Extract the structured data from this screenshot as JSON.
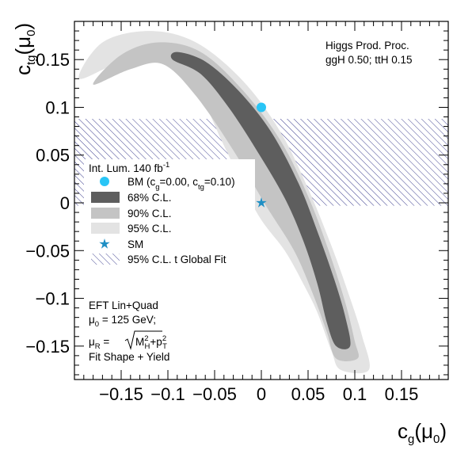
{
  "chart_data": {
    "type": "contour",
    "xlabel": {
      "main": "c",
      "sub": "g",
      "suffix": "(μ",
      "suffix_sub": "0",
      "close": ")"
    },
    "ylabel": {
      "main": "c",
      "sub": "tg",
      "suffix": "(μ",
      "suffix_sub": "0",
      "close": ")"
    },
    "xlim": [
      -0.2,
      0.2
    ],
    "ylim": [
      -0.185,
      0.19
    ],
    "x_ticks": [
      -0.15,
      -0.1,
      -0.05,
      0,
      0.05,
      0.1,
      0.15
    ],
    "x_tick_labels": [
      "−0.15",
      "−0.1",
      "−0.05",
      "0",
      "0.05",
      "0.1",
      "0.15"
    ],
    "y_ticks": [
      -0.15,
      -0.1,
      -0.05,
      0,
      0.05,
      0.1,
      0.15
    ],
    "y_tick_labels": [
      "−0.15",
      "−0.1",
      "−0.05",
      "0",
      "0.05",
      "0.1",
      "0.15"
    ],
    "grid": false,
    "colors": {
      "cl68": "#5e5e5e",
      "cl90": "#c4c4c4",
      "cl95": "#e3e3e3",
      "bm": "#29c5f6",
      "sm": "#1f8fc4",
      "hatch": "#2c2e86"
    },
    "benchmark_point": {
      "x": 0.0,
      "y": 0.1
    },
    "sm_point": {
      "x": 0.0,
      "y": 0.0
    },
    "global_fit_band": {
      "x": [
        -0.2,
        0.2
      ],
      "y": [
        -0.003,
        0.088
      ]
    },
    "regions": {
      "cl95": {
        "upper": [
          [
            -0.195,
            0.13
          ],
          [
            -0.17,
            0.168
          ],
          [
            -0.12,
            0.18
          ],
          [
            -0.07,
            0.168
          ],
          [
            -0.02,
            0.128
          ],
          [
            0.02,
            0.075
          ],
          [
            0.05,
            0.015
          ],
          [
            0.075,
            -0.045
          ],
          [
            0.095,
            -0.1
          ],
          [
            0.108,
            -0.14
          ],
          [
            0.115,
            -0.175
          ]
        ],
        "lower": [
          [
            -0.195,
            0.13
          ],
          [
            -0.15,
            0.148
          ],
          [
            -0.11,
            0.155
          ],
          [
            -0.07,
            0.12
          ],
          [
            -0.04,
            0.06
          ],
          [
            -0.005,
            -0.01
          ],
          [
            0.025,
            -0.05
          ],
          [
            0.045,
            -0.085
          ],
          [
            0.06,
            -0.115
          ],
          [
            0.075,
            -0.155
          ],
          [
            0.085,
            -0.175
          ],
          [
            0.115,
            -0.175
          ]
        ]
      },
      "cl90": {
        "upper": [
          [
            -0.18,
            0.124
          ],
          [
            -0.15,
            0.155
          ],
          [
            -0.11,
            0.168
          ],
          [
            -0.065,
            0.158
          ],
          [
            -0.02,
            0.118
          ],
          [
            0.02,
            0.066
          ],
          [
            0.05,
            0.007
          ],
          [
            0.072,
            -0.05
          ],
          [
            0.09,
            -0.105
          ],
          [
            0.1,
            -0.145
          ],
          [
            0.103,
            -0.163
          ]
        ],
        "lower": [
          [
            -0.18,
            0.124
          ],
          [
            -0.14,
            0.14
          ],
          [
            -0.105,
            0.145
          ],
          [
            -0.07,
            0.112
          ],
          [
            -0.03,
            0.055
          ],
          [
            0.005,
            -0.003
          ],
          [
            0.035,
            -0.05
          ],
          [
            0.055,
            -0.095
          ],
          [
            0.07,
            -0.135
          ],
          [
            0.08,
            -0.163
          ],
          [
            0.103,
            -0.163
          ]
        ]
      },
      "cl68": {
        "upper": [
          [
            -0.09,
            0.158
          ],
          [
            -0.06,
            0.148
          ],
          [
            -0.025,
            0.118
          ],
          [
            0.01,
            0.075
          ],
          [
            0.04,
            0.02
          ],
          [
            0.06,
            -0.03
          ],
          [
            0.078,
            -0.08
          ],
          [
            0.09,
            -0.12
          ],
          [
            0.095,
            -0.15
          ]
        ],
        "lower": [
          [
            -0.09,
            0.158
          ],
          [
            -0.095,
            0.15
          ],
          [
            -0.065,
            0.135
          ],
          [
            -0.035,
            0.1
          ],
          [
            -0.005,
            0.055
          ],
          [
            0.025,
            0.005
          ],
          [
            0.045,
            -0.04
          ],
          [
            0.06,
            -0.085
          ],
          [
            0.07,
            -0.125
          ],
          [
            0.08,
            -0.15
          ],
          [
            0.095,
            -0.15
          ]
        ]
      }
    },
    "legend": {
      "header": {
        "main": "Int. Lum. 140 fb",
        "sup": "-1"
      },
      "entries": [
        {
          "kind": "marker-circle",
          "label": "BM (c",
          "label_parts": [
            "BM (c",
            "g",
            "=0.00, c",
            "tg",
            "=0.10)"
          ]
        },
        {
          "kind": "box-68",
          "label": "68% C.L."
        },
        {
          "kind": "box-90",
          "label": "90% C.L."
        },
        {
          "kind": "box-95",
          "label": "95% C.L."
        },
        {
          "kind": "marker-star",
          "label": "SM"
        },
        {
          "kind": "hatch",
          "label": "95% C.L. t Global Fit"
        }
      ],
      "placement": "middle-left"
    },
    "annotation_top_right": {
      "line1": "Higgs Prod. Proc.",
      "line2": "ggH  0.50; ttH 0.15"
    },
    "annotation_bottom_left": {
      "line1": "EFT Lin+Quad",
      "line2_main": "μ",
      "line2_sub": "0",
      "line2_rest": " = 125 GeV;",
      "line3_main": "μ",
      "line3_sub": "R",
      "line3_eq": " =",
      "line3_m": "M",
      "line3_m_sub": "H",
      "line3_m_sup": "2",
      "line3_plus": "+p",
      "line3_p_sub": "T",
      "line3_p_sup": "2",
      "line4": "Fit Shape + Yield"
    }
  }
}
